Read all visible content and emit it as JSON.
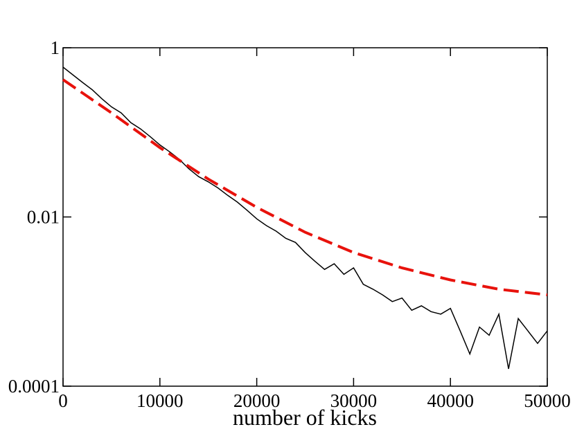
{
  "chart_data": {
    "type": "line",
    "xlabel": "number of kicks",
    "xlim": [
      0,
      50000
    ],
    "xticks": [
      0,
      10000,
      20000,
      30000,
      40000,
      50000
    ],
    "ylim": [
      0.0001,
      1
    ],
    "yticks": [
      0.0001,
      0.01,
      1
    ],
    "log_y": true,
    "series": [
      {
        "color": "#000000",
        "dash": false,
        "x": [
          0,
          1000,
          2000,
          3000,
          4000,
          5000,
          6000,
          7000,
          8000,
          9000,
          10000,
          11000,
          12000,
          13000,
          14000,
          15000,
          16000,
          17000,
          18000,
          19000,
          20000,
          21000,
          22000,
          23000,
          24000,
          25000,
          26000,
          27000,
          28000,
          29000,
          30000,
          31000,
          32000,
          33000,
          34000,
          35000,
          36000,
          37000,
          38000,
          39000,
          40000,
          41000,
          42000,
          43000,
          44000,
          45000,
          46000,
          47000,
          48000,
          49000,
          50000
        ],
        "values": [
          0.59,
          0.48,
          0.39,
          0.32,
          0.25,
          0.2,
          0.17,
          0.13,
          0.11,
          0.089,
          0.071,
          0.059,
          0.048,
          0.037,
          0.03,
          0.026,
          0.022,
          0.018,
          0.015,
          0.012,
          0.0095,
          0.0079,
          0.0068,
          0.0056,
          0.005,
          0.0038,
          0.003,
          0.0024,
          0.0028,
          0.0021,
          0.0025,
          0.0016,
          0.0014,
          0.0012,
          0.001,
          0.0011,
          0.00079,
          0.00089,
          0.00076,
          0.00071,
          0.00083,
          0.00045,
          0.00024,
          0.0005,
          0.0004,
          0.00071,
          0.00016,
          0.00063,
          0.00045,
          0.00032,
          0.00045
        ]
      },
      {
        "color": "#e8120c",
        "dash": true,
        "x": [
          0,
          5000,
          10000,
          15000,
          20000,
          25000,
          30000,
          35000,
          40000,
          45000,
          50000
        ],
        "values": [
          0.42,
          0.17,
          0.066,
          0.028,
          0.013,
          0.0066,
          0.0038,
          0.0025,
          0.0018,
          0.0014,
          0.0012
        ]
      }
    ]
  }
}
